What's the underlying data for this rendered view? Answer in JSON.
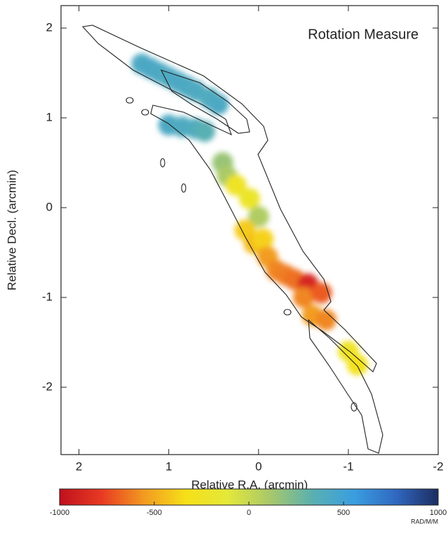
{
  "chart_data": {
    "type": "scatter",
    "title": "Rotation Measure",
    "xlabel": "Relative R.A. (arcmin)",
    "ylabel": "Relative Decl. (arcmin)",
    "xlim": [
      2.2,
      -2
    ],
    "ylim": [
      -2.75,
      2.25
    ],
    "xticks": [
      2,
      1,
      0,
      -1,
      -2
    ],
    "yticks": [
      2,
      1,
      0,
      -1,
      -2
    ],
    "x": [
      1.3,
      1.2,
      1.1,
      1.0,
      0.9,
      0.8,
      0.7,
      0.55,
      0.45,
      1.0,
      0.85,
      0.7,
      0.6,
      0.4,
      0.35,
      0.25,
      0.1,
      0.0,
      0.15,
      0.05,
      -0.05,
      -0.1,
      -0.2,
      -0.3,
      -0.4,
      -0.55,
      -0.5,
      -0.7,
      -0.6,
      -0.75,
      -1.0,
      -1.1
    ],
    "y": [
      1.6,
      1.55,
      1.5,
      1.45,
      1.4,
      1.35,
      1.3,
      1.22,
      1.15,
      0.92,
      0.9,
      0.88,
      0.85,
      0.5,
      0.35,
      0.25,
      0.1,
      -0.1,
      -0.25,
      -0.4,
      -0.35,
      -0.55,
      -0.7,
      -0.75,
      -0.8,
      -0.85,
      -1.0,
      -0.95,
      -1.2,
      -1.25,
      -1.6,
      -1.75
    ],
    "values": [
      420,
      430,
      420,
      410,
      420,
      420,
      410,
      400,
      420,
      420,
      410,
      400,
      350,
      150,
      100,
      -250,
      -200,
      80,
      -400,
      -450,
      -380,
      -550,
      -600,
      -620,
      -650,
      -880,
      -600,
      -700,
      -550,
      -600,
      -250,
      -300
    ],
    "colorbar": {
      "label": "RAD/M/M",
      "lim": [
        -1000,
        1000
      ],
      "ticks": [
        -1000,
        -500,
        0,
        500,
        1000
      ],
      "colors": [
        "#c0101e",
        "#e83a22",
        "#f29a20",
        "#f6e018",
        "#e4e83a",
        "#a8c86a",
        "#5ab0b0",
        "#3a9ee0",
        "#3068c0",
        "#1c2c60"
      ]
    }
  }
}
